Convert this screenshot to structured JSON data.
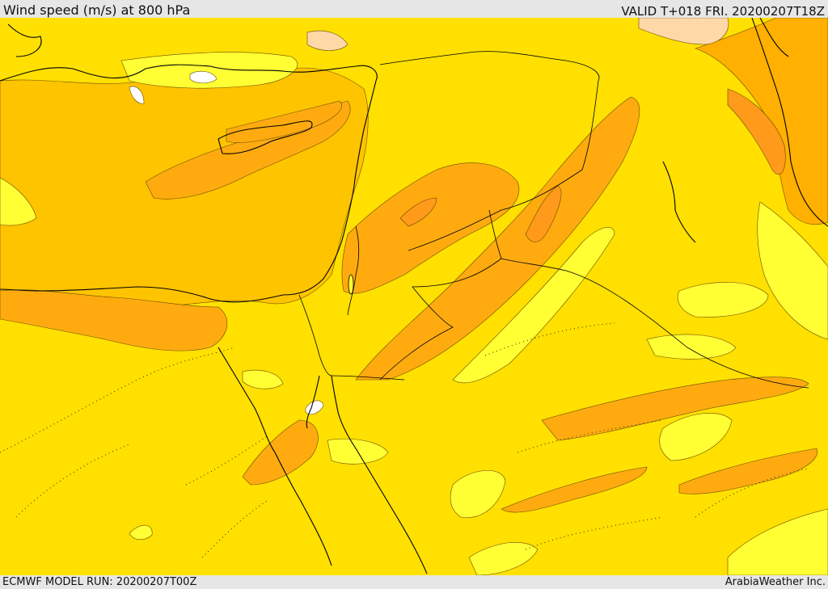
{
  "header": {
    "title": "Wind speed (m/s) at 800 hPa",
    "valid": "VALID T+018 FRI. 20200207T18Z"
  },
  "footer": {
    "model_run": "ECMWF MODEL RUN: 20200207T00Z",
    "credit": "ArabiaWeather Inc."
  },
  "palette": {
    "white": "#ffffff",
    "light_yellow": "#ffff33",
    "yellow": "#ffe000",
    "gold": "#ffc400",
    "orange_light": "#ffb000",
    "orange": "#ff9a1a",
    "peach": "#ffd8a8",
    "coast": "#000000"
  },
  "layers": [
    "wind-speed-shading",
    "contours",
    "coastlines",
    "borders"
  ]
}
